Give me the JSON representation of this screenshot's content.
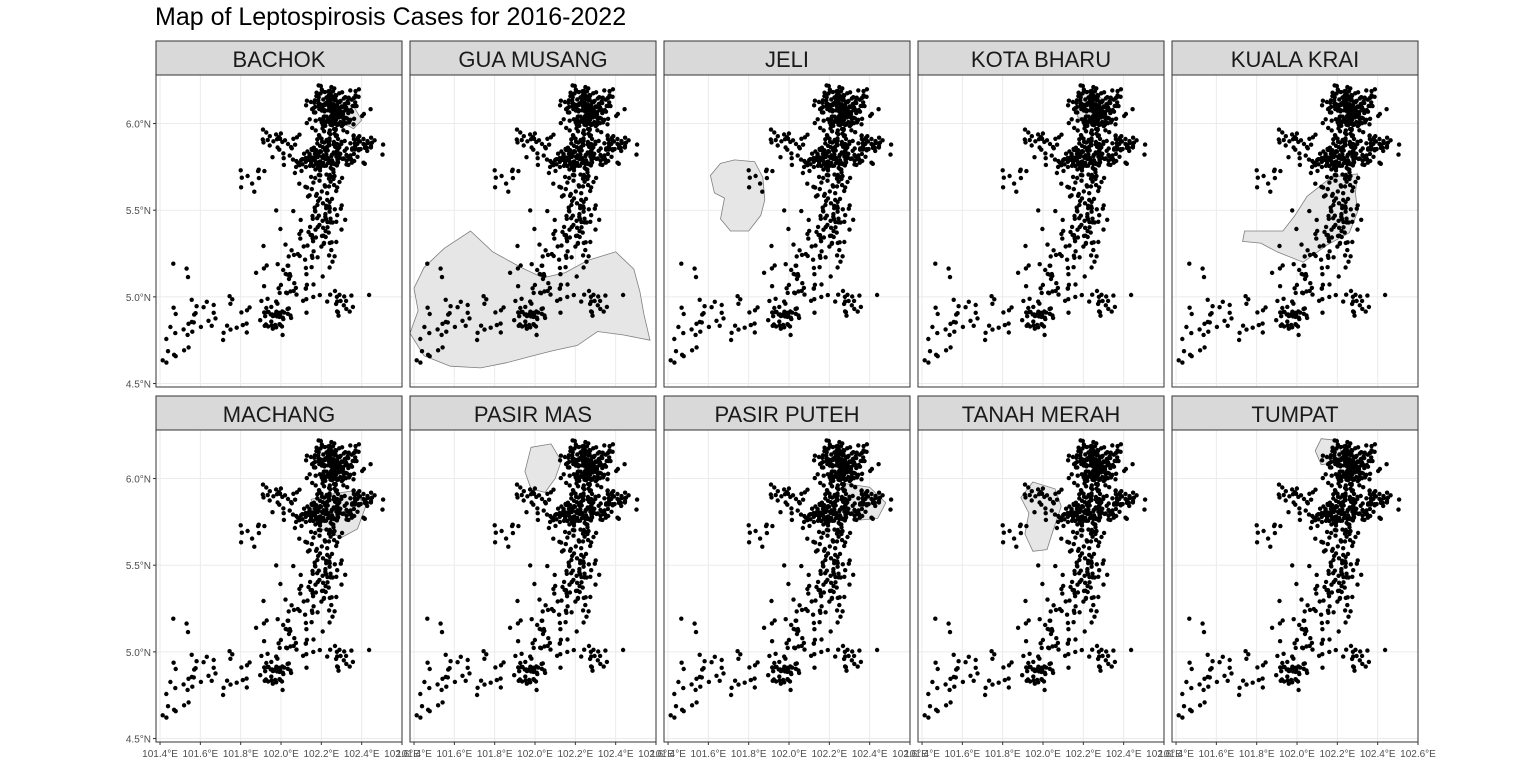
{
  "title": "Map of Leptospirosis Cases for 2016-2022",
  "axes": {
    "x_ticks": [
      "101.4°E",
      "101.6°E",
      "101.8°E",
      "102.0°E",
      "102.2°E",
      "102.4°E",
      "102.6°E"
    ],
    "y_ticks": [
      "4.5°N",
      "5.0°N",
      "5.5°N",
      "6.0°N"
    ],
    "x_tick_values": [
      101.4,
      101.6,
      101.8,
      102.0,
      102.2,
      102.4,
      102.6
    ],
    "y_tick_values": [
      4.5,
      5.0,
      5.5,
      6.0
    ],
    "xlim": [
      101.38,
      102.6
    ],
    "ylim": [
      4.48,
      6.28
    ]
  },
  "colors": {
    "strip_fill": "#d9d9d9",
    "strip_border": "#333333",
    "panel_border": "#333333",
    "grid": "#ebebeb",
    "polygon_fill": "#e6e6e6",
    "polygon_stroke": "#7f7f7f",
    "points": "#000000"
  },
  "chart_data": {
    "type": "scatter",
    "facet_by": "district",
    "panels": [
      "BACHOK",
      "GUA MUSANG",
      "JELI",
      "KOTA BHARU",
      "KUALA KRAI",
      "MACHANG",
      "PASIR MAS",
      "PASIR PUTEH",
      "TANAH MERAH",
      "TUMPAT"
    ],
    "highlight_polygons": {
      "BACHOK": [
        [
          102.28,
          6.13
        ],
        [
          102.36,
          6.1
        ],
        [
          102.4,
          6.02
        ],
        [
          102.36,
          5.97
        ],
        [
          102.31,
          6.0
        ],
        [
          102.28,
          6.07
        ]
      ],
      "GUA MUSANG": [
        [
          101.38,
          4.79
        ],
        [
          101.42,
          4.92
        ],
        [
          101.4,
          5.05
        ],
        [
          101.45,
          5.17
        ],
        [
          101.55,
          5.28
        ],
        [
          101.68,
          5.38
        ],
        [
          101.79,
          5.26
        ],
        [
          101.93,
          5.17
        ],
        [
          102.04,
          5.11
        ],
        [
          102.15,
          5.14
        ],
        [
          102.26,
          5.21
        ],
        [
          102.4,
          5.26
        ],
        [
          102.49,
          5.16
        ],
        [
          102.52,
          5.03
        ],
        [
          102.54,
          4.9
        ],
        [
          102.57,
          4.75
        ],
        [
          102.44,
          4.78
        ],
        [
          102.31,
          4.8
        ],
        [
          102.21,
          4.72
        ],
        [
          102.09,
          4.69
        ],
        [
          101.99,
          4.66
        ],
        [
          101.86,
          4.62
        ],
        [
          101.73,
          4.59
        ],
        [
          101.58,
          4.6
        ],
        [
          101.45,
          4.66
        ]
      ],
      "JELI": [
        [
          101.66,
          5.77
        ],
        [
          101.73,
          5.79
        ],
        [
          101.83,
          5.78
        ],
        [
          101.87,
          5.69
        ],
        [
          101.88,
          5.56
        ],
        [
          101.86,
          5.47
        ],
        [
          101.8,
          5.38
        ],
        [
          101.71,
          5.38
        ],
        [
          101.66,
          5.45
        ],
        [
          101.68,
          5.57
        ],
        [
          101.63,
          5.6
        ],
        [
          101.61,
          5.7
        ]
      ],
      "KOTA BHARU": [
        [
          102.2,
          6.2
        ],
        [
          102.3,
          6.14
        ],
        [
          102.32,
          6.03
        ],
        [
          102.24,
          5.99
        ],
        [
          102.17,
          6.04
        ],
        [
          102.17,
          6.13
        ]
      ],
      "KUALA KRAI": [
        [
          101.74,
          5.38
        ],
        [
          101.93,
          5.38
        ],
        [
          101.99,
          5.47
        ],
        [
          102.05,
          5.58
        ],
        [
          102.17,
          5.69
        ],
        [
          102.3,
          5.71
        ],
        [
          102.29,
          5.6
        ],
        [
          102.3,
          5.49
        ],
        [
          102.26,
          5.37
        ],
        [
          102.15,
          5.3
        ],
        [
          102.03,
          5.2
        ],
        [
          101.9,
          5.26
        ],
        [
          101.82,
          5.31
        ],
        [
          101.73,
          5.32
        ]
      ],
      "MACHANG": [
        [
          102.15,
          5.88
        ],
        [
          102.25,
          5.91
        ],
        [
          102.36,
          5.93
        ],
        [
          102.42,
          5.84
        ],
        [
          102.38,
          5.71
        ],
        [
          102.3,
          5.66
        ],
        [
          102.2,
          5.71
        ],
        [
          102.16,
          5.79
        ]
      ],
      "PASIR MAS": [
        [
          101.98,
          6.18
        ],
        [
          102.08,
          6.2
        ],
        [
          102.13,
          6.1
        ],
        [
          102.1,
          6.0
        ],
        [
          102.05,
          5.92
        ],
        [
          101.98,
          5.94
        ],
        [
          101.95,
          6.04
        ]
      ],
      "PASIR PUTEH": [
        [
          102.28,
          5.97
        ],
        [
          102.4,
          5.95
        ],
        [
          102.48,
          5.86
        ],
        [
          102.44,
          5.77
        ],
        [
          102.35,
          5.76
        ],
        [
          102.27,
          5.83
        ]
      ],
      "TANAH MERAH": [
        [
          101.95,
          5.98
        ],
        [
          102.06,
          5.94
        ],
        [
          102.09,
          5.84
        ],
        [
          102.05,
          5.7
        ],
        [
          102.02,
          5.59
        ],
        [
          101.95,
          5.58
        ],
        [
          101.91,
          5.68
        ],
        [
          101.93,
          5.8
        ],
        [
          101.89,
          5.89
        ]
      ],
      "TUMPAT": [
        [
          102.12,
          6.23
        ],
        [
          102.2,
          6.22
        ],
        [
          102.22,
          6.15
        ],
        [
          102.19,
          6.09
        ],
        [
          102.12,
          6.08
        ],
        [
          102.09,
          6.16
        ]
      ]
    }
  }
}
